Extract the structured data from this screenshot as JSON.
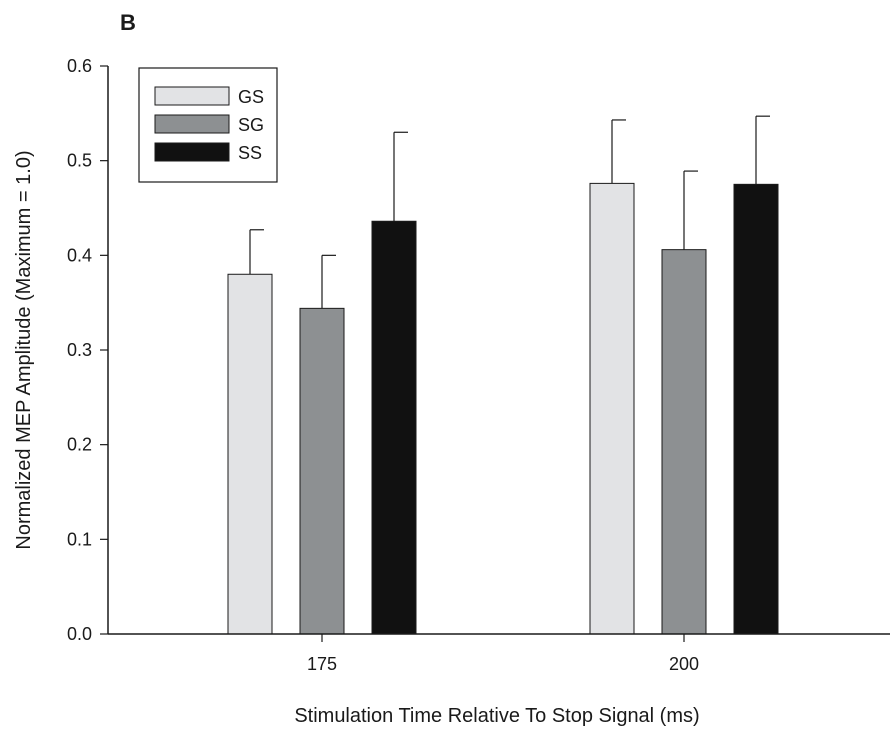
{
  "chart_data": {
    "type": "bar",
    "panel_label": "B",
    "categories": [
      "175",
      "200"
    ],
    "series": [
      {
        "name": "GS",
        "color": "#e2e3e5",
        "values": [
          0.38,
          0.476
        ],
        "errors": [
          0.047,
          0.067
        ]
      },
      {
        "name": "SG",
        "color": "#8d9092",
        "values": [
          0.344,
          0.406
        ],
        "errors": [
          0.056,
          0.083
        ]
      },
      {
        "name": "SS",
        "color": "#111111",
        "values": [
          0.436,
          0.475
        ],
        "errors": [
          0.094,
          0.072
        ]
      }
    ],
    "xlabel": "Stimulation Time Relative To Stop Signal (ms)",
    "ylabel": "Normalized MEP Amplitude (Maximum = 1.0)",
    "ylim": [
      0.0,
      0.6
    ],
    "yticks": [
      "0.0",
      "0.1",
      "0.2",
      "0.3",
      "0.4",
      "0.5",
      "0.6"
    ],
    "grid": false,
    "legend_position": "top-left",
    "error_bars": "upper"
  }
}
